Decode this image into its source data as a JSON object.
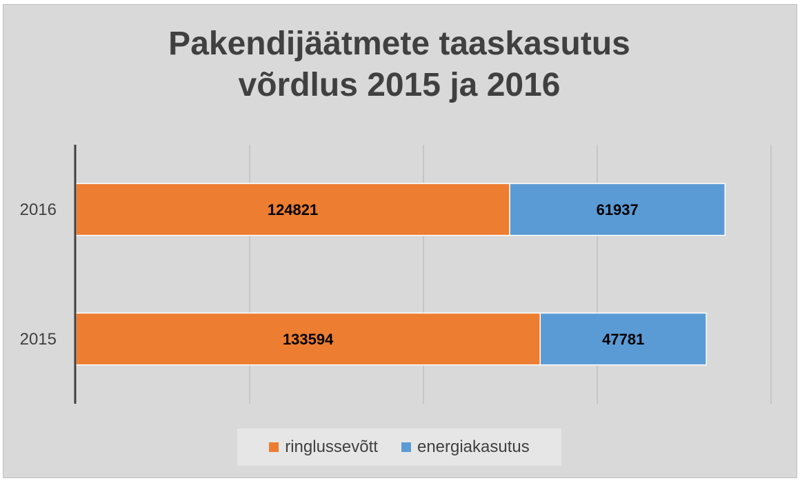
{
  "chart_data": {
    "type": "bar",
    "orientation": "horizontal",
    "stacked": true,
    "title_lines": [
      "Pakendijäätmete taaskasutus",
      "võrdlus 2015 ja 2016"
    ],
    "categories": [
      "2016",
      "2015"
    ],
    "series": [
      {
        "name": "ringlussevõtt",
        "color": "#ed7d31",
        "values": [
          124821,
          133594
        ]
      },
      {
        "name": "energiakasutus",
        "color": "#5b9bd5",
        "values": [
          61937,
          47781
        ]
      }
    ],
    "xlim": [
      0,
      200000
    ],
    "grid": true,
    "legend": "bottom",
    "data_labels": true
  }
}
